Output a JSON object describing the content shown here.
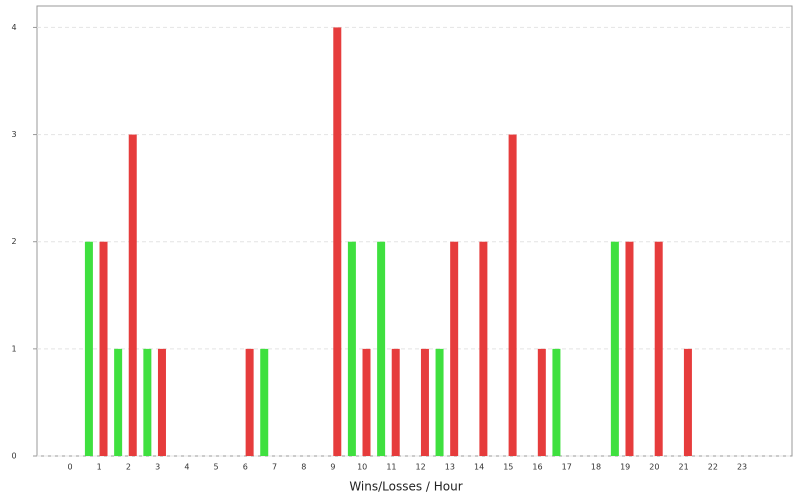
{
  "chart_data": {
    "type": "bar",
    "x_label": "Wins/Losses / Hour",
    "categories": [
      "0",
      "1",
      "2",
      "3",
      "4",
      "5",
      "6",
      "7",
      "8",
      "9",
      "10",
      "11",
      "12",
      "13",
      "14",
      "15",
      "16",
      "17",
      "18",
      "19",
      "20",
      "21",
      "22",
      "23"
    ],
    "series": [
      {
        "color": "#3fe03f",
        "values": [
          0,
          2,
          1,
          1,
          0,
          0,
          0,
          1,
          0,
          0,
          2,
          2,
          0,
          1,
          0,
          0,
          0,
          1,
          0,
          2,
          0,
          0,
          0,
          0
        ]
      },
      {
        "color": "#e63c3c",
        "values": [
          0,
          2,
          3,
          1,
          0,
          0,
          1,
          0,
          0,
          4,
          1,
          1,
          1,
          2,
          2,
          3,
          1,
          0,
          0,
          2,
          2,
          1,
          0,
          0
        ]
      }
    ],
    "ylim": [
      0,
      4.2
    ],
    "yticks": [
      0,
      1,
      2,
      3,
      4
    ],
    "grid": true
  }
}
